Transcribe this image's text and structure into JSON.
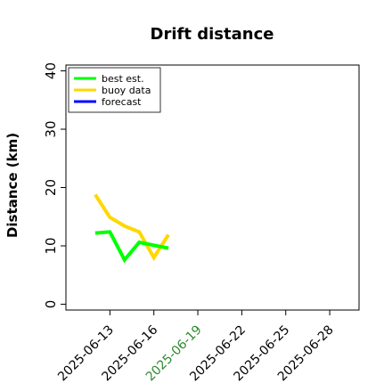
{
  "chart_data": {
    "type": "line",
    "title": "Drift distance",
    "xlabel": "",
    "ylabel": "Distance (km)",
    "ylim": [
      -1,
      41
    ],
    "xlim": [
      "2025-06-10",
      "2025-06-30"
    ],
    "yticks": [
      0,
      10,
      20,
      30,
      40
    ],
    "xticks": [
      {
        "date": "2025-06-13",
        "label": "2025-06-13",
        "color": "#000000"
      },
      {
        "date": "2025-06-16",
        "label": "2025-06-16",
        "color": "#000000"
      },
      {
        "date": "2025-06-19",
        "label": "2025-06-19",
        "color": "#2e8b2e"
      },
      {
        "date": "2025-06-22",
        "label": "2025-06-22",
        "color": "#000000"
      },
      {
        "date": "2025-06-25",
        "label": "2025-06-25",
        "color": "#000000"
      },
      {
        "date": "2025-06-28",
        "label": "2025-06-28",
        "color": "#000000"
      }
    ],
    "legend_position": "top-left",
    "grid": false,
    "series": [
      {
        "name": "best est.",
        "color": "#00ff00",
        "x": [
          "2025-06-12T00:00",
          "2025-06-13T00:00",
          "2025-06-14T00:00",
          "2025-06-15T00:00",
          "2025-06-16T00:00",
          "2025-06-17T00:00"
        ],
        "y": [
          12.2,
          12.4,
          7.6,
          10.6,
          10.1,
          9.6
        ]
      },
      {
        "name": "buoy data",
        "color": "#ffd700",
        "x": [
          "2025-06-12T00:00",
          "2025-06-13T00:00",
          "2025-06-14T00:00",
          "2025-06-15T00:00",
          "2025-06-16T00:00",
          "2025-06-17T00:00"
        ],
        "y": [
          18.8,
          14.9,
          13.4,
          12.4,
          8.0,
          11.9
        ]
      },
      {
        "name": "forecast",
        "color": "#0000ff",
        "x": [],
        "y": []
      }
    ]
  }
}
